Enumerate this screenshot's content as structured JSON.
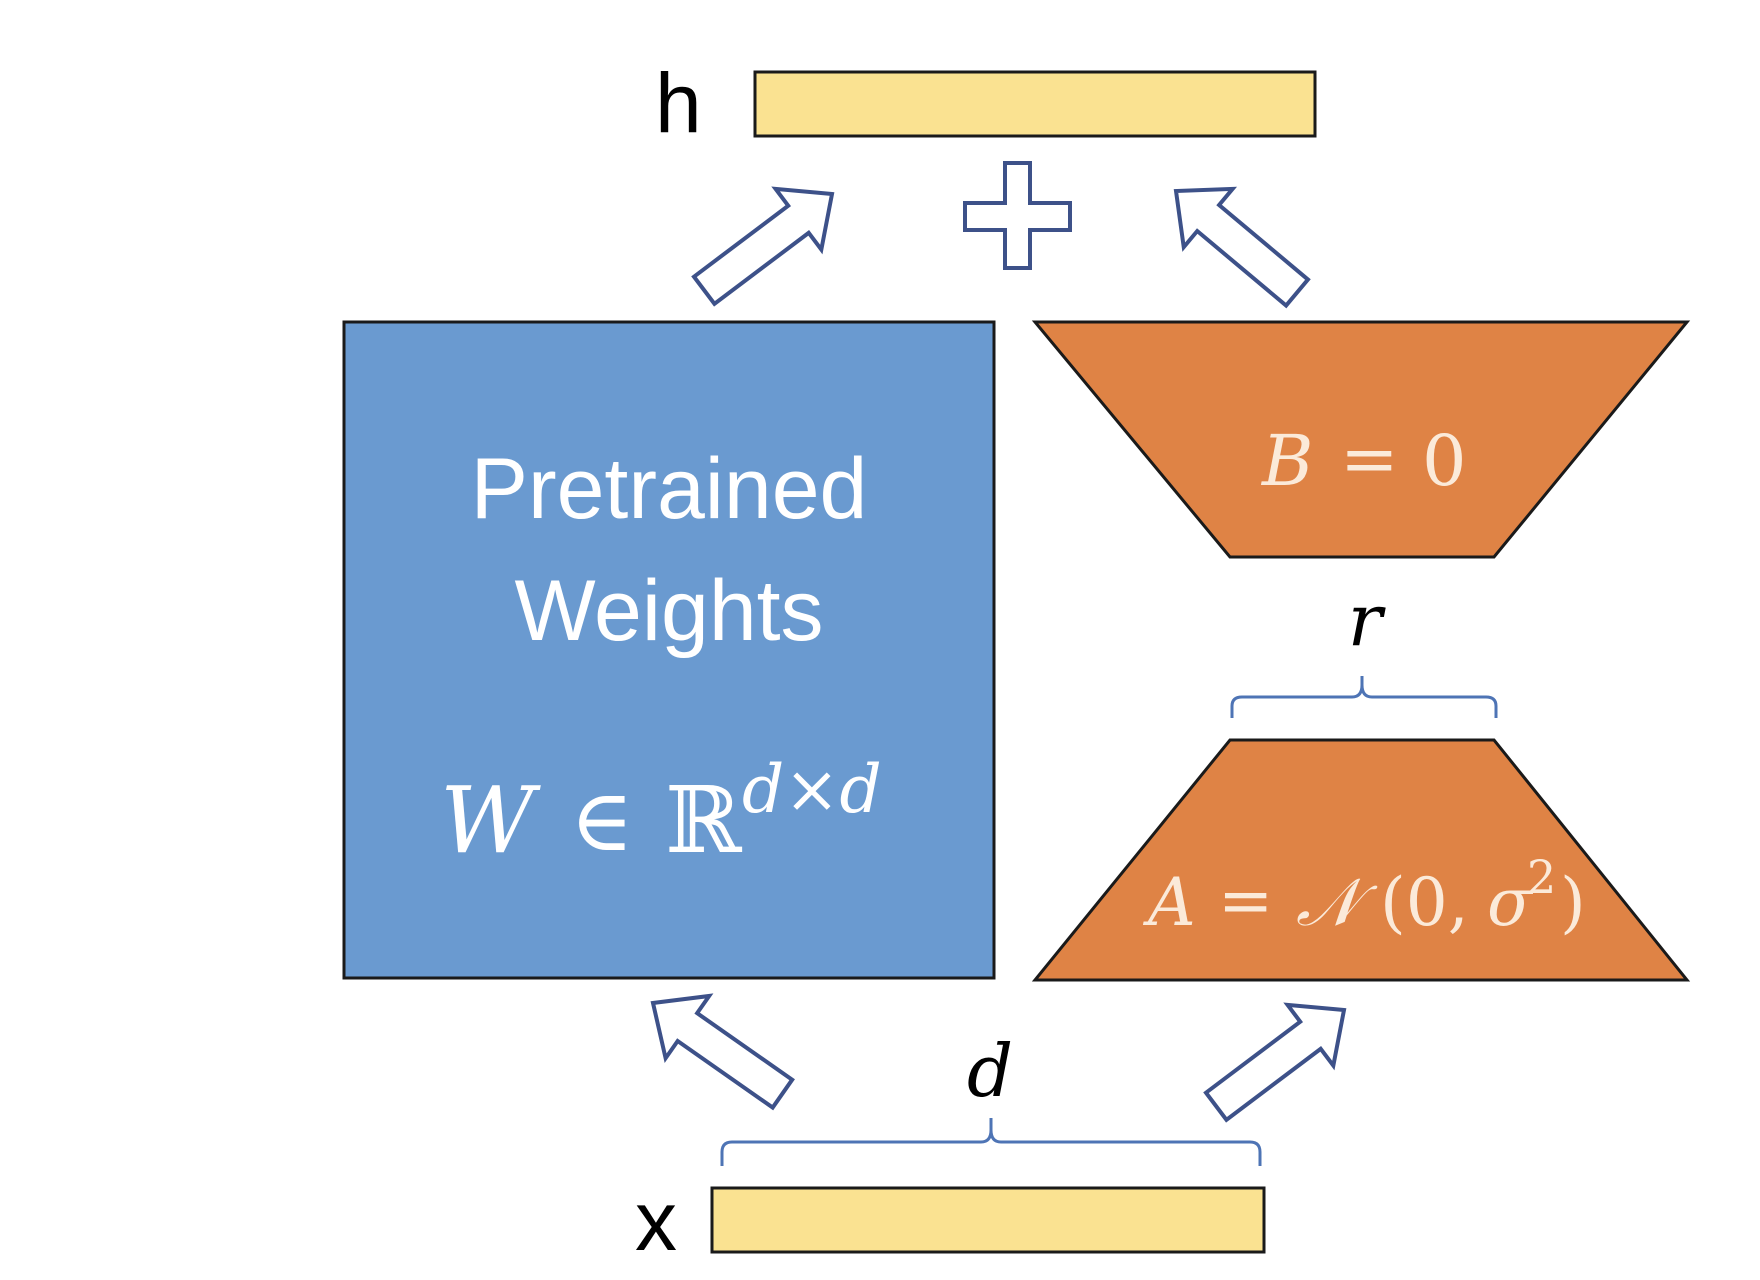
{
  "labels": {
    "output": "h",
    "input": "x"
  },
  "pretrained": {
    "line1": "Pretrained",
    "line2": "Weights",
    "formula_var": "W",
    "formula_in": "∈",
    "formula_set": "ℝ",
    "formula_sup": "d×d"
  },
  "matrix_b": {
    "var": "B",
    "eq": "=",
    "value": "0"
  },
  "matrix_a": {
    "var": "A",
    "eq": "=",
    "dist": "𝒩",
    "args_open": "(0,",
    "sigma": "σ",
    "exp": "2",
    "args_close": ")"
  },
  "dims": {
    "rank": "r",
    "input_dim": "d"
  },
  "operator": "plus",
  "colors": {
    "vector_fill": "#FAE291",
    "pretrained_fill": "#6A9AD0",
    "lora_fill": "#DF8345",
    "arrow_stroke": "#3D5189",
    "brace_stroke": "#4E74B5",
    "outline": "#1A1A1A",
    "text_on_shape": "#FFFFFF",
    "text_dark": "#000000"
  }
}
